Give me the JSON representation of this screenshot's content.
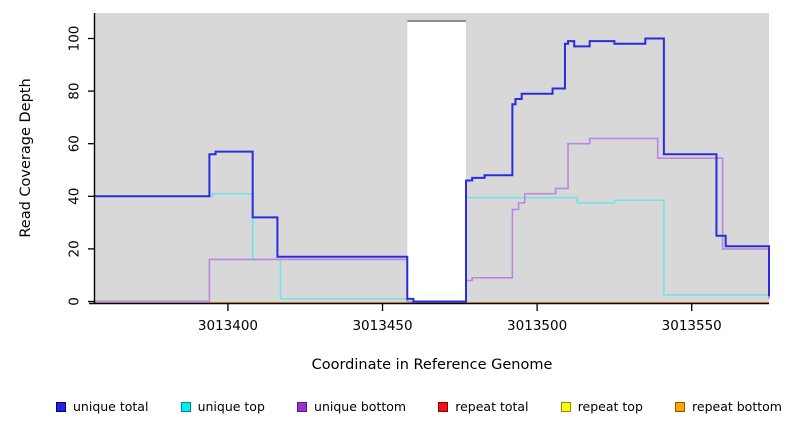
{
  "chart_data": {
    "type": "line",
    "subtype": "step",
    "title": "",
    "xlabel": "Coordinate in Reference Genome",
    "ylabel": "Read Coverage Depth",
    "x_range": [
      3013357,
      3013575
    ],
    "ylim": [
      0,
      100
    ],
    "x_ticks": [
      3013400,
      3013450,
      3013500,
      3013550
    ],
    "y_ticks": [
      0,
      20,
      40,
      60,
      80,
      100
    ],
    "grid": "off",
    "panel_bg": "#d8d8d8",
    "gap_region": {
      "start": 3013458,
      "end": 3013477,
      "fill": "#ffffff",
      "top_border": "#8f8f8f"
    },
    "series": [
      {
        "name": "repeat total",
        "color": "#e03a6e",
        "width": 1.6,
        "points": [
          [
            3013357,
            0
          ],
          [
            3013394,
            0
          ]
        ]
      },
      {
        "name": "repeat top",
        "color": "#ffee00",
        "width": 1.6,
        "points": [
          [
            3013394,
            -0.5
          ],
          [
            3013575,
            -0.5
          ]
        ]
      },
      {
        "name": "repeat bottom",
        "color": "#ffa51f",
        "width": 2,
        "points": [
          [
            3013394,
            -0.5
          ],
          [
            3013575,
            -0.5
          ]
        ]
      },
      {
        "name": "unique top",
        "color": "#72e2e8",
        "width": 1.6,
        "points": [
          [
            3013357,
            40
          ],
          [
            3013395,
            41
          ],
          [
            3013408,
            16
          ],
          [
            3013417,
            1
          ],
          [
            3013458,
            0
          ],
          [
            3013477,
            39.5
          ],
          [
            3013513,
            37.5
          ],
          [
            3013525,
            38.5
          ],
          [
            3013541,
            2.5
          ],
          [
            3013575,
            2.5
          ]
        ]
      },
      {
        "name": "unique bottom",
        "color": "#bb87de",
        "width": 1.6,
        "points": [
          [
            3013357,
            0
          ],
          [
            3013394,
            16
          ],
          [
            3013458,
            0
          ],
          [
            3013477,
            8
          ],
          [
            3013479,
            9
          ],
          [
            3013492,
            35
          ],
          [
            3013494,
            37.5
          ],
          [
            3013496,
            41
          ],
          [
            3013506,
            43
          ],
          [
            3013510,
            60
          ],
          [
            3013517,
            62
          ],
          [
            3013539,
            54.5
          ],
          [
            3013560,
            20
          ],
          [
            3013575,
            1
          ]
        ]
      },
      {
        "name": "unique total",
        "color": "#2b2bdf",
        "width": 2,
        "points": [
          [
            3013357,
            40
          ],
          [
            3013394,
            56
          ],
          [
            3013396,
            57
          ],
          [
            3013408,
            32
          ],
          [
            3013416,
            17
          ],
          [
            3013458,
            1
          ],
          [
            3013460,
            0
          ],
          [
            3013477,
            46
          ],
          [
            3013479,
            47
          ],
          [
            3013483,
            48
          ],
          [
            3013492,
            75
          ],
          [
            3013493,
            77
          ],
          [
            3013495,
            79
          ],
          [
            3013505,
            81
          ],
          [
            3013509,
            98
          ],
          [
            3013510,
            99
          ],
          [
            3013512,
            97
          ],
          [
            3013517,
            99
          ],
          [
            3013525,
            98
          ],
          [
            3013535,
            100
          ],
          [
            3013541,
            56
          ],
          [
            3013558,
            25
          ],
          [
            3013561,
            21
          ],
          [
            3013575,
            2
          ]
        ]
      }
    ],
    "legend_position": "bottom",
    "legend": [
      {
        "label": "unique total",
        "fill": "#2222e0",
        "border": "#000099"
      },
      {
        "label": "unique top",
        "fill": "#00eeee",
        "border": "#008b8b"
      },
      {
        "label": "unique bottom",
        "fill": "#9932cc",
        "border": "#551a8b"
      },
      {
        "label": "repeat total",
        "fill": "#ee1111",
        "border": "#8b0000"
      },
      {
        "label": "repeat top",
        "fill": "#ffff00",
        "border": "#8b8b00"
      },
      {
        "label": "repeat bottom",
        "fill": "#ffa500",
        "border": "#8b5a00"
      }
    ]
  }
}
